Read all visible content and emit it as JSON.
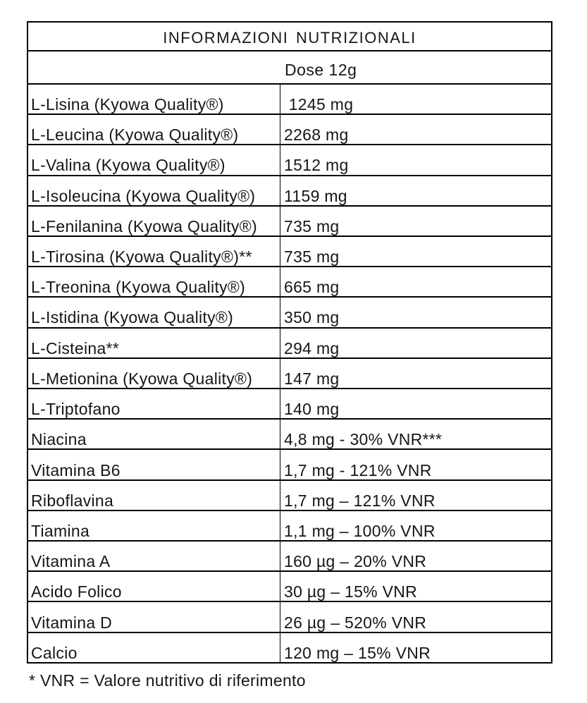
{
  "table": {
    "title": "INFORMAZIONI NUTRIZIONALI",
    "dose_header": "Dose 12g",
    "rows": [
      {
        "label": "L-Lisina (Kyowa Quality®)",
        "value": " 1245 mg"
      },
      {
        "label": "L-Leucina (Kyowa Quality®)",
        "value": "2268 mg"
      },
      {
        "label": "L-Valina (Kyowa Quality®)",
        "value": "1512 mg"
      },
      {
        "label": "L-Isoleucina (Kyowa Quality®)",
        "value": "1159 mg"
      },
      {
        "label": "L-Fenilanina (Kyowa Quality®)",
        "value": "735 mg"
      },
      {
        "label": "L-Tirosina (Kyowa Quality®)**",
        "value": "735 mg"
      },
      {
        "label": "L-Treonina (Kyowa Quality®)",
        "value": "665 mg"
      },
      {
        "label": "L-Istidina (Kyowa Quality®)",
        "value": "350 mg"
      },
      {
        "label": "L-Cisteina**",
        "value": "294 mg"
      },
      {
        "label": "L-Metionina (Kyowa Quality®)",
        "value": "147 mg"
      },
      {
        "label": "L-Triptofano",
        "value": "140 mg"
      },
      {
        "label": "Niacina",
        "value": "4,8 mg - 30% VNR***"
      },
      {
        "label": "Vitamina B6",
        "value": "1,7 mg - 121% VNR"
      },
      {
        "label": "Riboflavina",
        "value": "1,7 mg – 121% VNR"
      },
      {
        "label": "Tiamina",
        "value": "1,1 mg – 100% VNR"
      },
      {
        "label": "Vitamina A",
        "value": "160 µg – 20% VNR"
      },
      {
        "label": "Acido Folico",
        "value": "30 µg – 15% VNR"
      },
      {
        "label": "Vitamina D",
        "value": "26 µg – 520% VNR"
      },
      {
        "label": "Calcio",
        "value": "120 mg – 15% VNR"
      }
    ],
    "footnote": "* VNR = Valore nutritivo di riferimento"
  },
  "colors": {
    "border": "#000000",
    "text": "#161616",
    "background": "#ffffff"
  }
}
